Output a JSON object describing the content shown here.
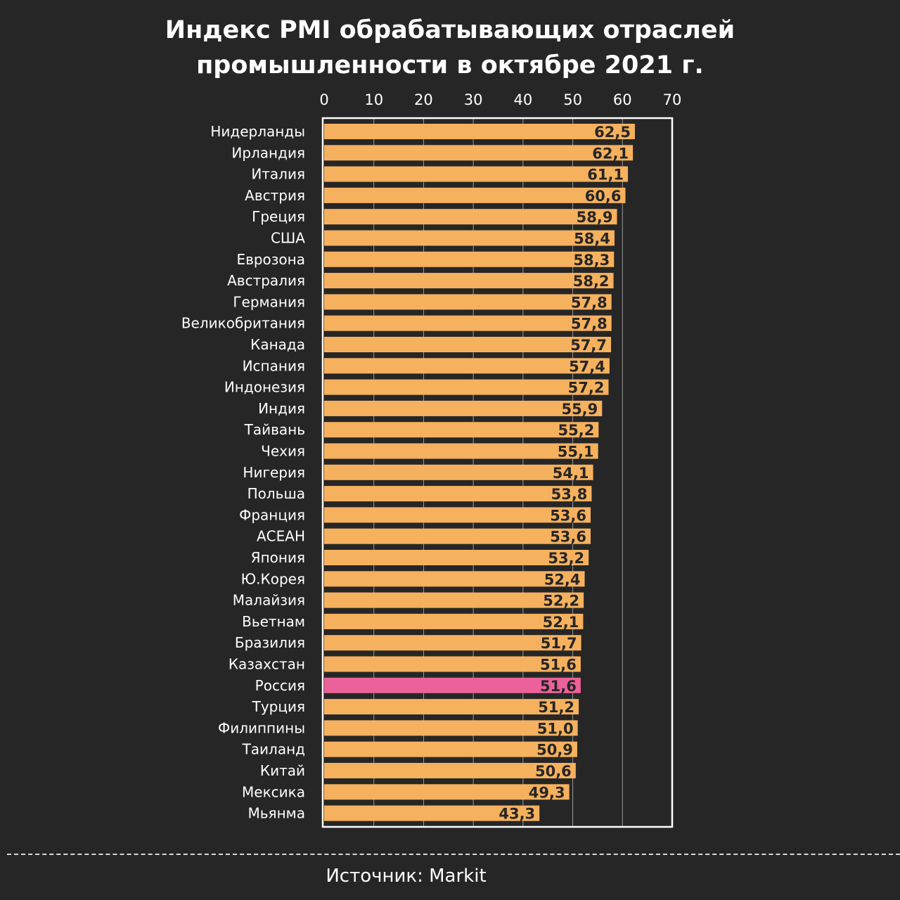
{
  "chart_data": {
    "type": "bar",
    "orientation": "horizontal",
    "title_lines": [
      "Индекс PMI обрабатывающих отраслей",
      "промышленности в октябре 2021 г."
    ],
    "xlim": [
      0,
      70
    ],
    "ticks": [
      "0",
      "10",
      "20",
      "30",
      "40",
      "50",
      "60",
      "70"
    ],
    "tick_values": [
      0,
      10,
      20,
      30,
      40,
      50,
      60,
      70
    ],
    "grid": true,
    "categories": [
      "Нидерланды",
      "Ирландия",
      "Италия",
      "Австрия",
      "Греция",
      "США",
      "Еврозона",
      "Австралия",
      "Германия",
      "Великобритания",
      "Канада",
      "Испания",
      "Индонезия",
      "Индия",
      "Тайвань",
      "Чехия",
      "Нигерия",
      "Польша",
      "Франция",
      "АСЕАН",
      "Япония",
      "Ю.Корея",
      "Малайзия",
      "Вьетнам",
      "Бразилия",
      "Казахстан",
      "Россия",
      "Турция",
      "Филиппины",
      "Таиланд",
      "Китай",
      "Мексика",
      "Мьянма"
    ],
    "values": [
      62.5,
      62.1,
      61.1,
      60.6,
      58.9,
      58.4,
      58.3,
      58.2,
      57.8,
      57.8,
      57.7,
      57.4,
      57.2,
      55.9,
      55.2,
      55.1,
      54.1,
      53.8,
      53.6,
      53.6,
      53.2,
      52.4,
      52.2,
      52.1,
      51.7,
      51.6,
      51.6,
      51.2,
      51.0,
      50.9,
      50.6,
      49.3,
      43.3
    ],
    "value_labels": [
      "62,5",
      "62,1",
      "61,1",
      "60,6",
      "58,9",
      "58,4",
      "58,3",
      "58,2",
      "57,8",
      "57,8",
      "57,7",
      "57,4",
      "57,2",
      "55,9",
      "55,2",
      "55,1",
      "54,1",
      "53,8",
      "53,6",
      "53,6",
      "53,2",
      "52,4",
      "52,2",
      "52,1",
      "51,7",
      "51,6",
      "51,6",
      "51,2",
      "51,0",
      "50,9",
      "50,6",
      "49,3",
      "43,3"
    ],
    "highlight": "Россия",
    "colors": {
      "bar": "#f6b15e",
      "highlight": "#ec6199",
      "background": "#262626",
      "text": "#ffffff",
      "value_text": "#262626",
      "grid": "#9a9a9a",
      "frame": "#ffffff"
    }
  },
  "footer": {
    "source": "Источник: Markit"
  }
}
